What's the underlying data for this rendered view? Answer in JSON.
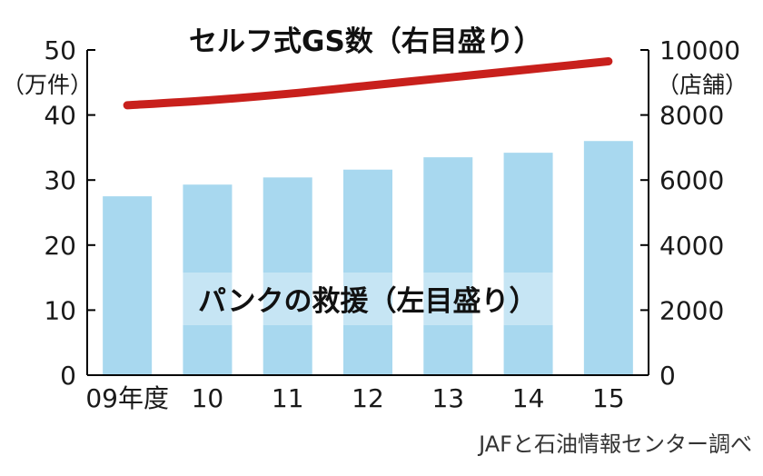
{
  "chart_data": {
    "type": "bar+line",
    "categories": [
      "09年度",
      "10",
      "11",
      "12",
      "13",
      "14",
      "15"
    ],
    "bars": {
      "label": "パンクの救援（左目盛り）",
      "values": [
        27.5,
        29.3,
        30.4,
        31.6,
        33.5,
        34.2,
        36.0
      ],
      "color": "#a8d8ef"
    },
    "line": {
      "label": "セルフ式GS数（右目盛り）",
      "values": [
        8300,
        8450,
        8650,
        8900,
        9150,
        9400,
        9650
      ],
      "color": "#c8201c"
    },
    "left_axis": {
      "unit": "（万件）",
      "ticks": [
        "0",
        "10",
        "20",
        "30",
        "40",
        "50"
      ],
      "ylim": [
        0,
        50
      ]
    },
    "right_axis": {
      "unit": "（店舗）",
      "ticks": [
        "0",
        "2000",
        "4000",
        "6000",
        "8000",
        "10000"
      ],
      "ylim": [
        0,
        10000
      ]
    },
    "source": "JAFと石油情報センター調べ"
  }
}
